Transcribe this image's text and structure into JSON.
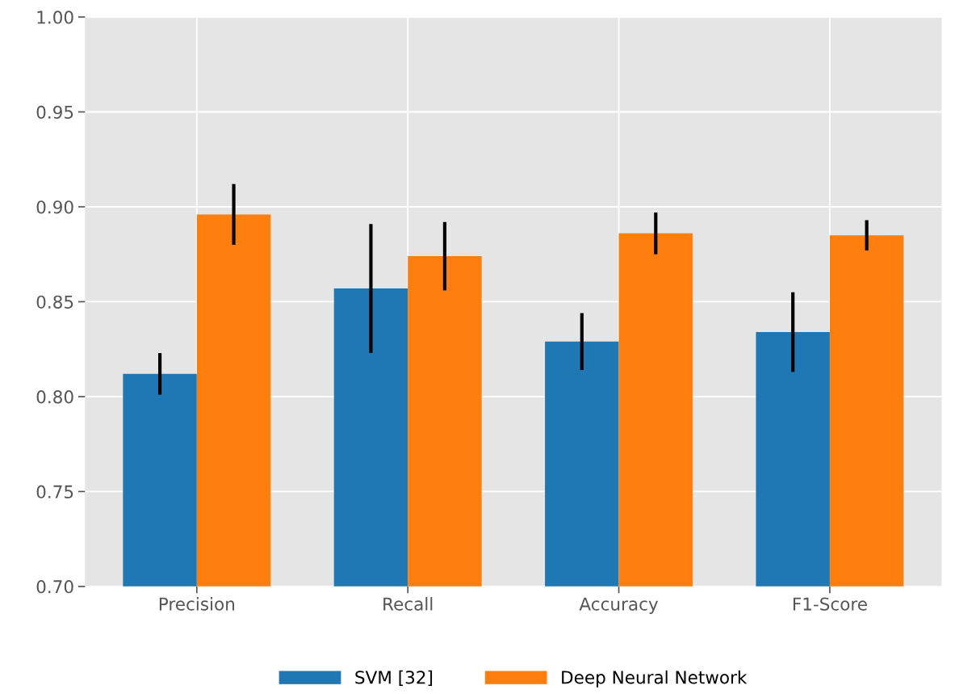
{
  "chart_data": {
    "type": "bar",
    "categories": [
      "Precision",
      "Recall",
      "Accuracy",
      "F1-Score"
    ],
    "series": [
      {
        "name": "SVM [32]",
        "color": "#1f77b4",
        "values": [
          0.812,
          0.857,
          0.829,
          0.834
        ],
        "errors": [
          0.011,
          0.034,
          0.015,
          0.021
        ]
      },
      {
        "name": "Deep Neural Network",
        "color": "#ff7f0e",
        "values": [
          0.896,
          0.874,
          0.886,
          0.885
        ],
        "errors": [
          0.016,
          0.018,
          0.011,
          0.008
        ]
      }
    ],
    "ylim": [
      0.7,
      1.0
    ],
    "yticks": [
      {
        "value": 0.7,
        "label": "0.70"
      },
      {
        "value": 0.75,
        "label": "0.75"
      },
      {
        "value": 0.8,
        "label": "0.80"
      },
      {
        "value": 0.85,
        "label": "0.85"
      },
      {
        "value": 0.9,
        "label": "0.90"
      },
      {
        "value": 0.95,
        "label": "0.95"
      },
      {
        "value": 1.0,
        "label": "1.00"
      }
    ],
    "grid": true,
    "legend": "bottom"
  }
}
